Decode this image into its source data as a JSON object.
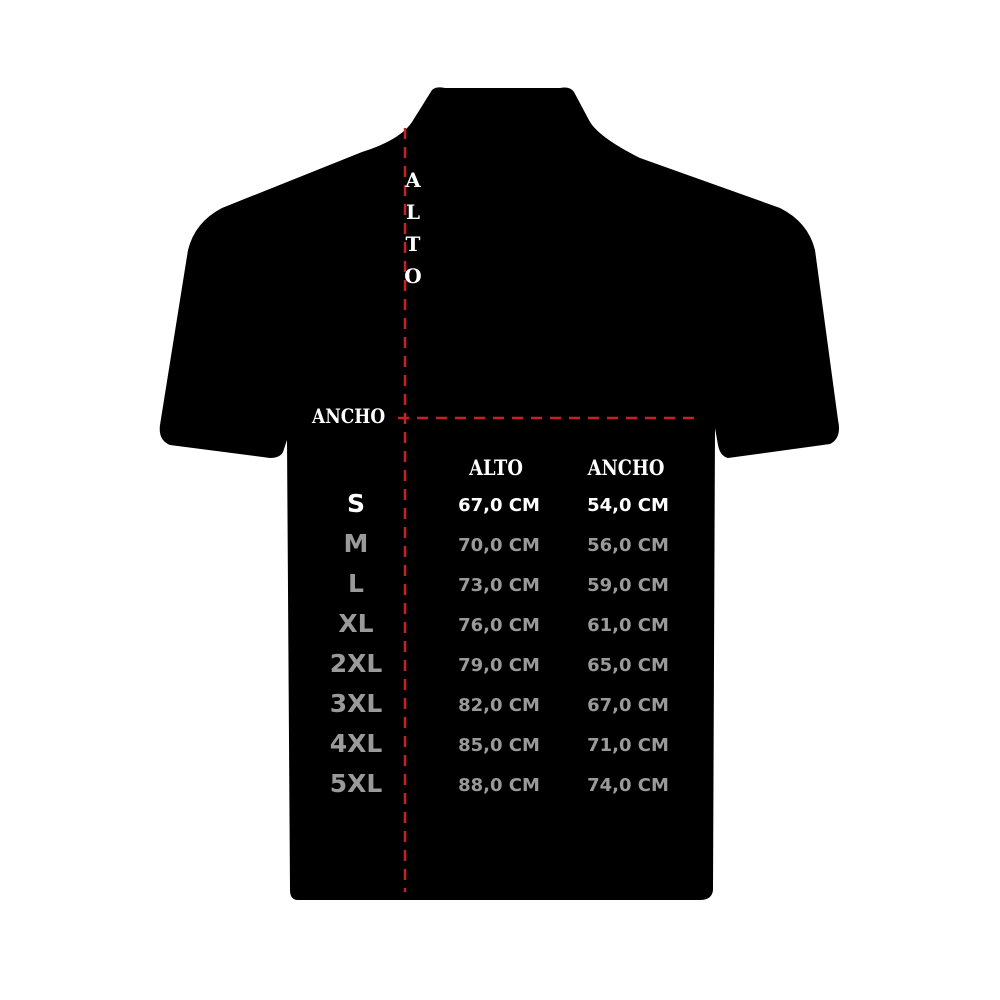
{
  "diagram": {
    "vertical_label": "ALTO",
    "horizontal_label": "ANCHO",
    "colors": {
      "shirt": "#000000",
      "measure_line": "#c8202a",
      "highlight_text": "#ffffff",
      "text": "#9a9a9a"
    }
  },
  "table": {
    "headers": [
      "ALTO",
      "ANCHO"
    ],
    "rows": [
      {
        "size": "S",
        "alto": "67,0 CM",
        "ancho": "54,0 CM"
      },
      {
        "size": "M",
        "alto": "70,0 CM",
        "ancho": "56,0 CM"
      },
      {
        "size": "L",
        "alto": "73,0 CM",
        "ancho": "59,0 CM"
      },
      {
        "size": "XL",
        "alto": "76,0 CM",
        "ancho": "61,0 CM"
      },
      {
        "size": "2XL",
        "alto": "79,0 CM",
        "ancho": "65,0 CM"
      },
      {
        "size": "3XL",
        "alto": "82,0 CM",
        "ancho": "67,0 CM"
      },
      {
        "size": "4XL",
        "alto": "85,0 CM",
        "ancho": "71,0 CM"
      },
      {
        "size": "5XL",
        "alto": "88,0 CM",
        "ancho": "74,0 CM"
      }
    ]
  }
}
